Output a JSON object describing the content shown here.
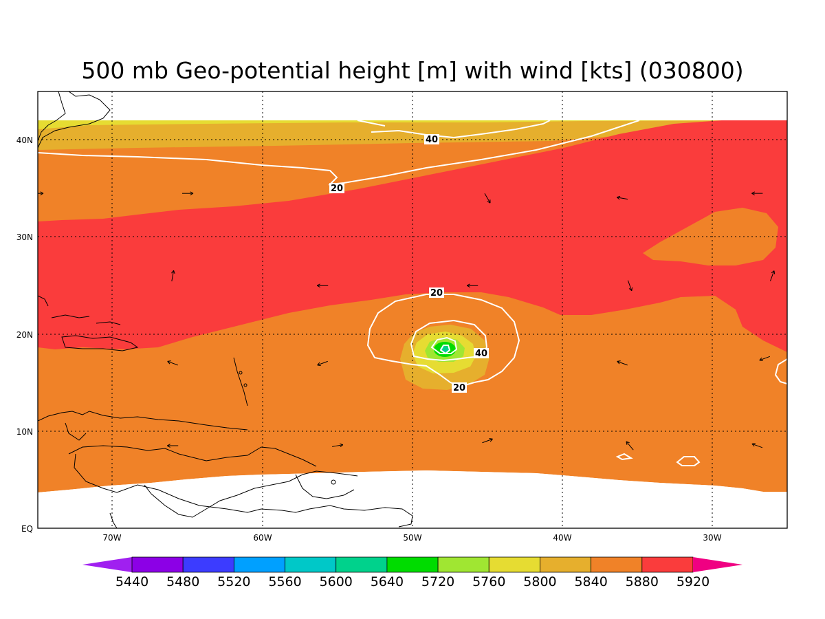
{
  "title": "500 mb Geo-potential height [m] with wind [kts] (030800)",
  "axes": {
    "x_ticks": [
      "70W",
      "60W",
      "50W",
      "40W",
      "30W"
    ],
    "y_ticks": [
      "EQ",
      "10N",
      "20N",
      "30N",
      "40N"
    ],
    "lon_range": [
      -75,
      -25
    ],
    "lat_range": [
      0,
      45
    ]
  },
  "colorbar": {
    "labels": [
      "5440",
      "5480",
      "5520",
      "5560",
      "5600",
      "5640",
      "5720",
      "5760",
      "5800",
      "5840",
      "5880",
      "5920"
    ],
    "colors": [
      "#a020f0",
      "#8c00e6",
      "#3c3cff",
      "#00a0ff",
      "#00c8c8",
      "#00d28c",
      "#00dc00",
      "#a0e632",
      "#e6dc32",
      "#e6af2d",
      "#f08228",
      "#fa3c3c",
      "#f00082"
    ]
  },
  "fill_colors": {
    "band_5800_5840": "#e6dc32",
    "band_5840_5880": "#e6af2d",
    "band_5880_5920": "#f08228",
    "band_5920_plus": "#fa3c3c",
    "storm_core": "#a0e632",
    "storm_center": "#00dc00"
  },
  "contour_labels": [
    "40",
    "20",
    "20",
    "40",
    "20"
  ],
  "grid": "dotted",
  "map_data": {
    "contour_levels_kts": [
      20,
      40
    ],
    "storm_center_lon": -48,
    "storm_center_lat": 18.5,
    "wind_vectors": [
      {
        "lon": -75,
        "lat": 34.5,
        "dir": 0
      },
      {
        "lon": -65,
        "lat": 34.5,
        "dir": 0
      },
      {
        "lon": -45,
        "lat": 34,
        "dir": 60
      },
      {
        "lon": -36,
        "lat": 34,
        "dir": 190
      },
      {
        "lon": -27,
        "lat": 34.5,
        "dir": 180
      },
      {
        "lon": -66,
        "lat": 26,
        "dir": -80
      },
      {
        "lon": -56,
        "lat": 25,
        "dir": 180
      },
      {
        "lon": -46,
        "lat": 25,
        "dir": 180
      },
      {
        "lon": -35.5,
        "lat": 25,
        "dir": 70
      },
      {
        "lon": -26,
        "lat": 26,
        "dir": -70
      },
      {
        "lon": -66,
        "lat": 17,
        "dir": 200
      },
      {
        "lon": -56,
        "lat": 17,
        "dir": 160
      },
      {
        "lon": -36,
        "lat": 17,
        "dir": 200
      },
      {
        "lon": -26.5,
        "lat": 17.5,
        "dir": 160
      },
      {
        "lon": -66,
        "lat": 8.5,
        "dir": 180
      },
      {
        "lon": -55,
        "lat": 8.5,
        "dir": -10
      },
      {
        "lon": -45,
        "lat": 9,
        "dir": -20
      },
      {
        "lon": -35.5,
        "lat": 8.5,
        "dir": 230
      },
      {
        "lon": -27,
        "lat": 8.5,
        "dir": 200
      }
    ]
  }
}
